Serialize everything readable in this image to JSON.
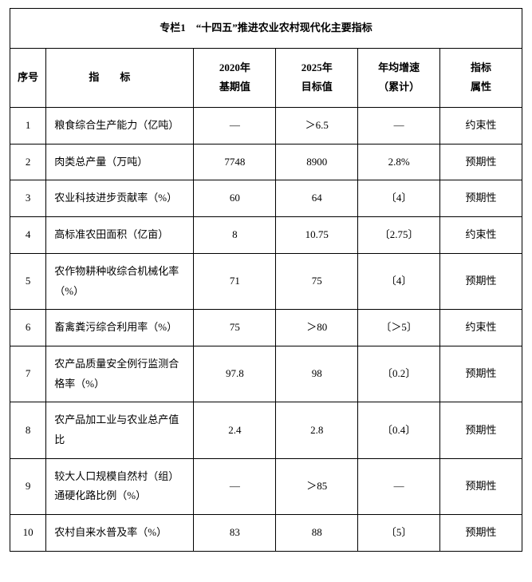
{
  "table": {
    "title": "专栏1 “十四五”推进农业农村现代化主要指标",
    "columns": {
      "seq": "序号",
      "indicator": "指标",
      "base2020_line1": "2020年",
      "base2020_line2": "基期值",
      "target2025_line1": "2025年",
      "target2025_line2": "目标值",
      "growth_line1": "年均增速",
      "growth_line2": "（累计）",
      "attr_line1": "指标",
      "attr_line2": "属性"
    },
    "colwidths": {
      "seq": 44,
      "indicator": 180,
      "base": 100,
      "target": 100,
      "growth": 100,
      "attr": 100
    },
    "border_color": "#000000",
    "bg_color": "#ffffff",
    "text_color": "#000000",
    "font_family": "SimSun",
    "font_size_pt": 10,
    "rows": [
      {
        "seq": "1",
        "indicator": "粮食综合生产能力（亿吨）",
        "base": "—",
        "target": "＞6.5",
        "growth": "—",
        "attr": "约束性"
      },
      {
        "seq": "2",
        "indicator": "肉类总产量（万吨）",
        "base": "7748",
        "target": "8900",
        "growth": "2.8%",
        "attr": "预期性"
      },
      {
        "seq": "3",
        "indicator": "农业科技进步贡献率（%）",
        "base": "60",
        "target": "64",
        "growth": "〔4〕",
        "attr": "预期性"
      },
      {
        "seq": "4",
        "indicator": "高标准农田面积（亿亩）",
        "base": "8",
        "target": "10.75",
        "growth": "〔2.75〕",
        "attr": "约束性"
      },
      {
        "seq": "5",
        "indicator": "农作物耕种收综合机械化率（%）",
        "base": "71",
        "target": "75",
        "growth": "〔4〕",
        "attr": "预期性"
      },
      {
        "seq": "6",
        "indicator": "畜禽粪污综合利用率（%）",
        "base": "75",
        "target": "＞80",
        "growth": "〔＞5〕",
        "attr": "约束性"
      },
      {
        "seq": "7",
        "indicator": "农产品质量安全例行监测合格率（%）",
        "base": "97.8",
        "target": "98",
        "growth": "〔0.2〕",
        "attr": "预期性"
      },
      {
        "seq": "8",
        "indicator": "农产品加工业与农业总产值比",
        "base": "2.4",
        "target": "2.8",
        "growth": "〔0.4〕",
        "attr": "预期性"
      },
      {
        "seq": "9",
        "indicator": "较大人口规模自然村（组）通硬化路比例（%）",
        "base": "—",
        "target": "＞85",
        "growth": "—",
        "attr": "预期性"
      },
      {
        "seq": "10",
        "indicator": "农村自来水普及率（%）",
        "base": "83",
        "target": "88",
        "growth": "〔5〕",
        "attr": "预期性"
      }
    ]
  }
}
